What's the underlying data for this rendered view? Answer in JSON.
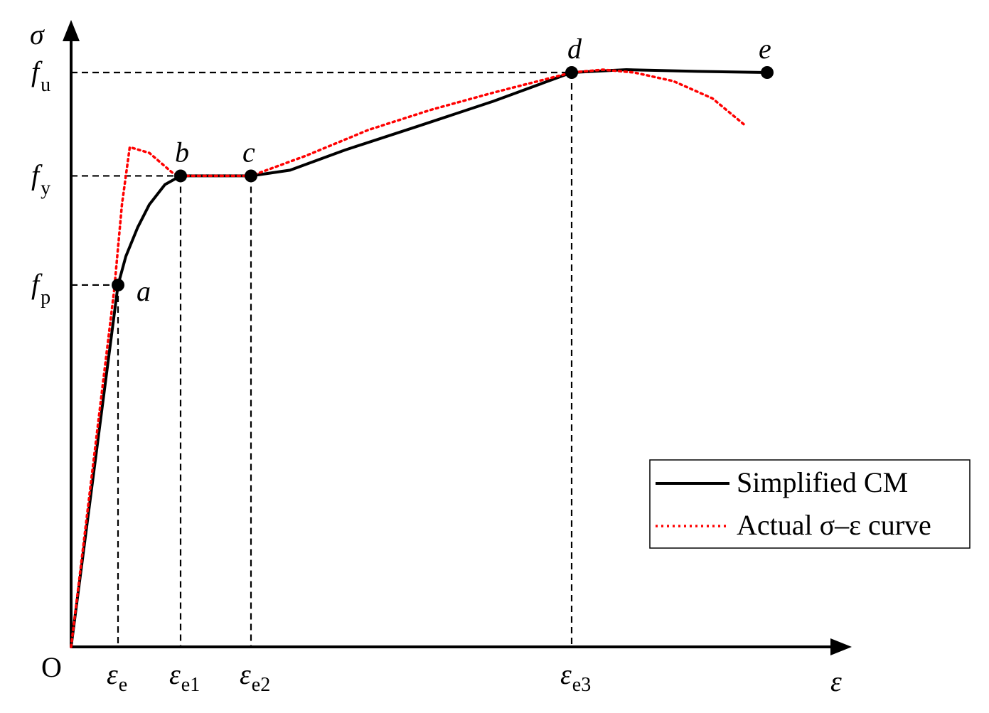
{
  "chart_data": {
    "type": "line",
    "xlabel": "ε",
    "ylabel": "σ",
    "origin_label": "O",
    "x_ticks": [
      {
        "base": "ε",
        "sub": "e"
      },
      {
        "base": "ε",
        "sub": "e1"
      },
      {
        "base": "ε",
        "sub": "e2"
      },
      {
        "base": "ε",
        "sub": "e3"
      }
    ],
    "y_ticks": [
      {
        "base": "f",
        "sub": "p"
      },
      {
        "base": "f",
        "sub": "y"
      },
      {
        "base": "f",
        "sub": "u"
      }
    ],
    "key_points": [
      {
        "label": "a",
        "x": 0.6,
        "y": 0.63
      },
      {
        "label": "b",
        "x": 1.4,
        "y": 0.82
      },
      {
        "label": "c",
        "x": 2.3,
        "y": 0.82
      },
      {
        "label": "d",
        "x": 6.4,
        "y": 1.0
      },
      {
        "label": "e",
        "x": 8.9,
        "y": 1.0
      }
    ],
    "series": [
      {
        "name": "Simplified CM",
        "color": "#000000",
        "style": "solid",
        "points": [
          [
            0,
            0
          ],
          [
            0.6,
            0.63
          ],
          [
            0.7,
            0.68
          ],
          [
            0.85,
            0.73
          ],
          [
            1.0,
            0.77
          ],
          [
            1.2,
            0.805
          ],
          [
            1.4,
            0.82
          ],
          [
            2.3,
            0.82
          ],
          [
            2.8,
            0.83
          ],
          [
            3.5,
            0.865
          ],
          [
            4.4,
            0.905
          ],
          [
            5.4,
            0.95
          ],
          [
            6.4,
            1.0
          ],
          [
            7.1,
            1.005
          ],
          [
            8.0,
            1.002
          ],
          [
            8.9,
            1.0
          ]
        ]
      },
      {
        "name": "Actual σ–ε curve",
        "color": "#ff0000",
        "style": "dotted",
        "points": [
          [
            0,
            0
          ],
          [
            0.55,
            0.62
          ],
          [
            0.65,
            0.77
          ],
          [
            0.75,
            0.87
          ],
          [
            1.0,
            0.86
          ],
          [
            1.3,
            0.825
          ],
          [
            1.4,
            0.82
          ],
          [
            2.3,
            0.82
          ],
          [
            3.0,
            0.855
          ],
          [
            3.8,
            0.9
          ],
          [
            4.6,
            0.935
          ],
          [
            5.4,
            0.965
          ],
          [
            6.4,
            1.0
          ],
          [
            6.8,
            1.005
          ],
          [
            7.2,
            1.0
          ],
          [
            7.7,
            0.985
          ],
          [
            8.2,
            0.955
          ],
          [
            8.6,
            0.91
          ]
        ]
      }
    ],
    "legend": {
      "position": "bottom-right",
      "entries": [
        "Simplified CM",
        "Actual σ–ε curve"
      ]
    },
    "grid": false
  }
}
